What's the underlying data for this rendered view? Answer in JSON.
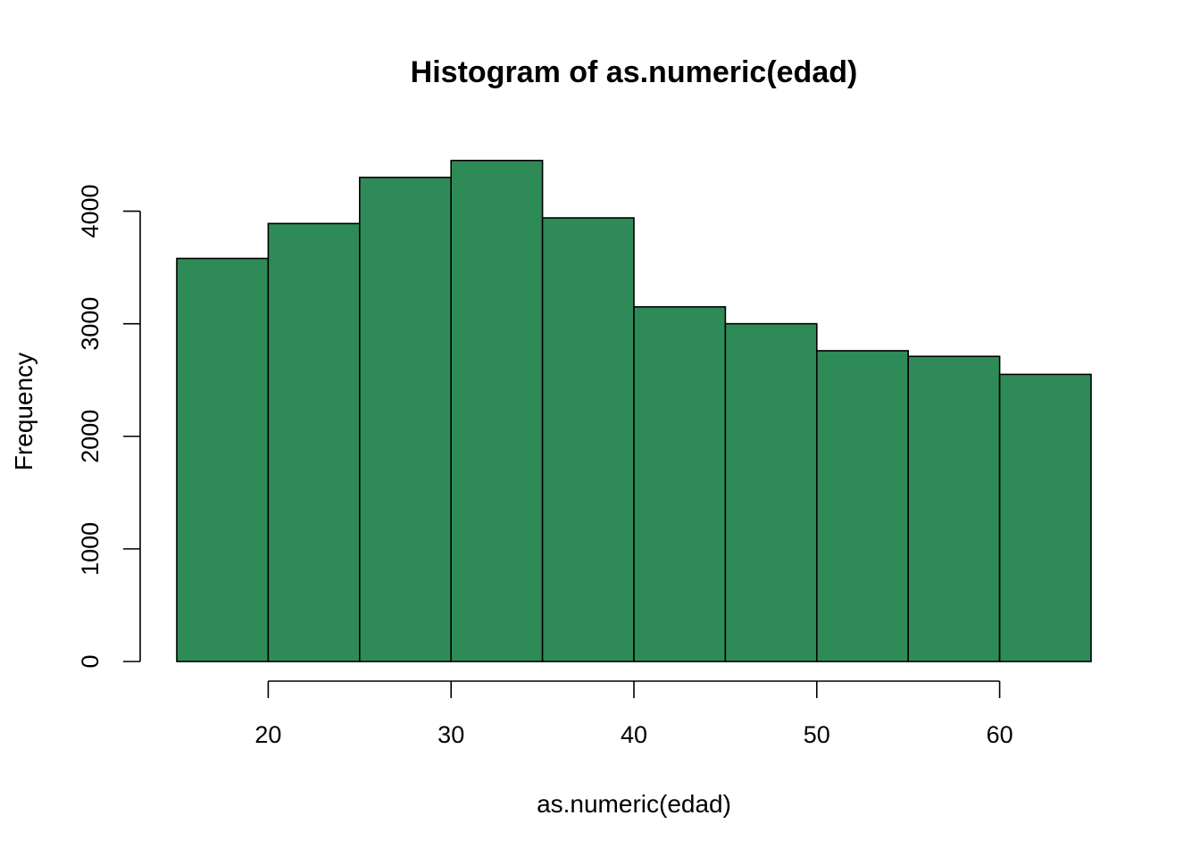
{
  "chart_data": {
    "type": "bar",
    "title": "Histogram of as.numeric(edad)",
    "xlabel": "as.numeric(edad)",
    "ylabel": "Frequency",
    "bin_edges": [
      15,
      20,
      25,
      30,
      35,
      40,
      45,
      50,
      55,
      60,
      65
    ],
    "values": [
      3580,
      3890,
      4300,
      4450,
      3940,
      3150,
      3000,
      2760,
      2710,
      2550
    ],
    "x_ticks": [
      "20",
      "30",
      "40",
      "50",
      "60"
    ],
    "y_ticks": [
      "0",
      "1000",
      "2000",
      "3000",
      "4000"
    ],
    "ylim": [
      0,
      4450
    ],
    "xlim": [
      15,
      65
    ],
    "bar_color": "#2E8B57",
    "grid": false
  }
}
